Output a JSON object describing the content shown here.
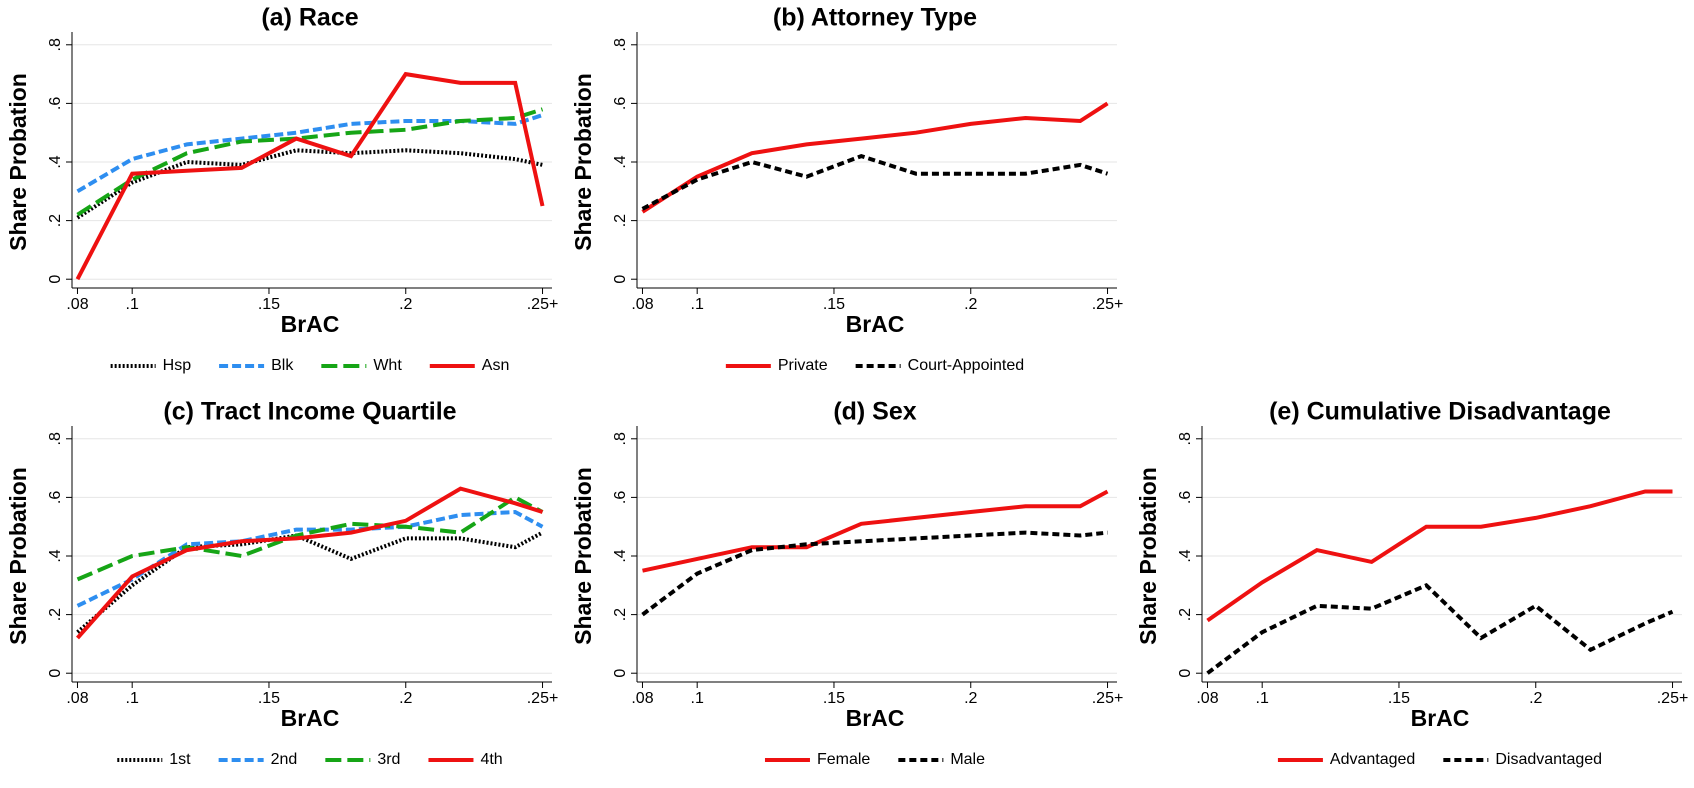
{
  "chart_data": [
    {
      "type": "line",
      "title": "(a) Race",
      "ylabel": "Share Probation",
      "xlabel": "BrAC",
      "x": [
        0.08,
        0.1,
        0.12,
        0.14,
        0.16,
        0.18,
        0.2,
        0.22,
        0.24,
        0.25
      ],
      "xlim": [
        0.078,
        0.252
      ],
      "xticks": [
        {
          "value": 0.08,
          "label": ".08"
        },
        {
          "value": 0.1,
          "label": ".1"
        },
        {
          "value": 0.15,
          "label": ".15"
        },
        {
          "value": 0.2,
          "label": ".2"
        },
        {
          "value": 0.25,
          "label": ".25+"
        }
      ],
      "ylim": [
        -0.03,
        0.83
      ],
      "yticks": [
        0,
        {
          "value": 0.2,
          "label": ".2"
        },
        {
          "value": 0.4,
          "label": ".4"
        },
        {
          "value": 0.6,
          "label": ".6"
        },
        {
          "value": 0.8,
          "label": ".8"
        }
      ],
      "grid": true,
      "legend": "bottom",
      "series": [
        {
          "name": "Hsp",
          "color": "#000000",
          "style": "dotted",
          "values": [
            0.21,
            0.33,
            0.4,
            0.39,
            0.44,
            0.43,
            0.44,
            0.43,
            0.41,
            0.39
          ]
        },
        {
          "name": "Blk",
          "color": "#2e8ef0",
          "style": "dashed",
          "values": [
            0.3,
            0.41,
            0.46,
            0.48,
            0.5,
            0.53,
            0.54,
            0.54,
            0.53,
            0.56
          ]
        },
        {
          "name": "Wht",
          "color": "#16a516",
          "style": "longdash",
          "values": [
            0.22,
            0.34,
            0.43,
            0.47,
            0.48,
            0.5,
            0.51,
            0.54,
            0.55,
            0.58
          ]
        },
        {
          "name": "Asn",
          "color": "#ee1111",
          "style": "solid",
          "values": [
            0.0,
            0.36,
            0.37,
            0.38,
            0.48,
            0.42,
            0.7,
            0.67,
            0.67,
            0.25
          ]
        }
      ]
    },
    {
      "type": "line",
      "title": "(b) Attorney Type",
      "ylabel": "Share Probation",
      "xlabel": "BrAC",
      "x": [
        0.08,
        0.1,
        0.12,
        0.14,
        0.16,
        0.18,
        0.2,
        0.22,
        0.24,
        0.25
      ],
      "xlim": [
        0.078,
        0.252
      ],
      "xticks": [
        {
          "value": 0.08,
          "label": ".08"
        },
        {
          "value": 0.1,
          "label": ".1"
        },
        {
          "value": 0.15,
          "label": ".15"
        },
        {
          "value": 0.2,
          "label": ".2"
        },
        {
          "value": 0.25,
          "label": ".25+"
        }
      ],
      "ylim": [
        -0.03,
        0.83
      ],
      "yticks": [
        0,
        {
          "value": 0.2,
          "label": ".2"
        },
        {
          "value": 0.4,
          "label": ".4"
        },
        {
          "value": 0.6,
          "label": ".6"
        },
        {
          "value": 0.8,
          "label": ".8"
        }
      ],
      "grid": true,
      "legend": "bottom",
      "series": [
        {
          "name": "Private",
          "color": "#ee1111",
          "style": "solid",
          "values": [
            0.23,
            0.35,
            0.43,
            0.46,
            0.48,
            0.5,
            0.53,
            0.55,
            0.54,
            0.6
          ]
        },
        {
          "name": "Court-Appointed",
          "color": "#000000",
          "style": "shortdash",
          "values": [
            0.24,
            0.34,
            0.4,
            0.35,
            0.42,
            0.36,
            0.36,
            0.36,
            0.39,
            0.36
          ]
        }
      ]
    },
    {
      "type": "line",
      "title": "(c) Tract Income Quartile",
      "ylabel": "Share Probation",
      "xlabel": "BrAC",
      "x": [
        0.08,
        0.1,
        0.12,
        0.14,
        0.16,
        0.18,
        0.2,
        0.22,
        0.24,
        0.25
      ],
      "xlim": [
        0.078,
        0.252
      ],
      "xticks": [
        {
          "value": 0.08,
          "label": ".08"
        },
        {
          "value": 0.1,
          "label": ".1"
        },
        {
          "value": 0.15,
          "label": ".15"
        },
        {
          "value": 0.2,
          "label": ".2"
        },
        {
          "value": 0.25,
          "label": ".25+"
        }
      ],
      "ylim": [
        -0.03,
        0.83
      ],
      "yticks": [
        0,
        {
          "value": 0.2,
          "label": ".2"
        },
        {
          "value": 0.4,
          "label": ".4"
        },
        {
          "value": 0.6,
          "label": ".6"
        },
        {
          "value": 0.8,
          "label": ".8"
        }
      ],
      "grid": true,
      "legend": "bottom",
      "series": [
        {
          "name": "1st",
          "color": "#000000",
          "style": "dotted",
          "values": [
            0.14,
            0.3,
            0.43,
            0.44,
            0.47,
            0.39,
            0.46,
            0.46,
            0.43,
            0.48
          ]
        },
        {
          "name": "2nd",
          "color": "#2e8ef0",
          "style": "dashed",
          "values": [
            0.23,
            0.32,
            0.44,
            0.45,
            0.49,
            0.49,
            0.5,
            0.54,
            0.55,
            0.5
          ]
        },
        {
          "name": "3rd",
          "color": "#16a516",
          "style": "longdash",
          "values": [
            0.32,
            0.4,
            0.43,
            0.4,
            0.47,
            0.51,
            0.5,
            0.48,
            0.6,
            0.55
          ]
        },
        {
          "name": "4th",
          "color": "#ee1111",
          "style": "solid",
          "values": [
            0.12,
            0.33,
            0.42,
            0.45,
            0.46,
            0.48,
            0.52,
            0.63,
            0.58,
            0.55
          ]
        }
      ]
    },
    {
      "type": "line",
      "title": "(d) Sex",
      "ylabel": "Share Probation",
      "xlabel": "BrAC",
      "x": [
        0.08,
        0.1,
        0.12,
        0.14,
        0.16,
        0.18,
        0.2,
        0.22,
        0.24,
        0.25
      ],
      "xlim": [
        0.078,
        0.252
      ],
      "xticks": [
        {
          "value": 0.08,
          "label": ".08"
        },
        {
          "value": 0.1,
          "label": ".1"
        },
        {
          "value": 0.15,
          "label": ".15"
        },
        {
          "value": 0.2,
          "label": ".2"
        },
        {
          "value": 0.25,
          "label": ".25+"
        }
      ],
      "ylim": [
        -0.03,
        0.83
      ],
      "yticks": [
        0,
        {
          "value": 0.2,
          "label": ".2"
        },
        {
          "value": 0.4,
          "label": ".4"
        },
        {
          "value": 0.6,
          "label": ".6"
        },
        {
          "value": 0.8,
          "label": ".8"
        }
      ],
      "grid": true,
      "legend": "bottom",
      "series": [
        {
          "name": "Female",
          "color": "#ee1111",
          "style": "solid",
          "values": [
            0.35,
            0.39,
            0.43,
            0.43,
            0.51,
            0.53,
            0.55,
            0.57,
            0.57,
            0.62
          ]
        },
        {
          "name": "Male",
          "color": "#000000",
          "style": "shortdash",
          "values": [
            0.2,
            0.34,
            0.42,
            0.44,
            0.45,
            0.46,
            0.47,
            0.48,
            0.47,
            0.48
          ]
        }
      ]
    },
    {
      "type": "line",
      "title": "(e) Cumulative Disadvantage",
      "ylabel": "Share Probation",
      "xlabel": "BrAC",
      "x": [
        0.08,
        0.1,
        0.12,
        0.14,
        0.16,
        0.18,
        0.2,
        0.22,
        0.24,
        0.25
      ],
      "xlim": [
        0.078,
        0.252
      ],
      "xticks": [
        {
          "value": 0.08,
          "label": ".08"
        },
        {
          "value": 0.1,
          "label": ".1"
        },
        {
          "value": 0.15,
          "label": ".15"
        },
        {
          "value": 0.2,
          "label": ".2"
        },
        {
          "value": 0.25,
          "label": ".25+"
        }
      ],
      "ylim": [
        -0.03,
        0.83
      ],
      "yticks": [
        0,
        {
          "value": 0.2,
          "label": ".2"
        },
        {
          "value": 0.4,
          "label": ".4"
        },
        {
          "value": 0.6,
          "label": ".6"
        },
        {
          "value": 0.8,
          "label": ".8"
        }
      ],
      "grid": true,
      "legend": "bottom",
      "series": [
        {
          "name": "Advantaged",
          "color": "#ee1111",
          "style": "solid",
          "values": [
            0.18,
            0.31,
            0.42,
            0.38,
            0.5,
            0.5,
            0.53,
            0.57,
            0.62,
            0.62
          ]
        },
        {
          "name": "Disadvantaged",
          "color": "#000000",
          "style": "shortdash",
          "values": [
            0.0,
            0.14,
            0.23,
            0.22,
            0.3,
            0.12,
            0.23,
            0.08,
            0.17,
            0.21
          ]
        }
      ]
    }
  ]
}
